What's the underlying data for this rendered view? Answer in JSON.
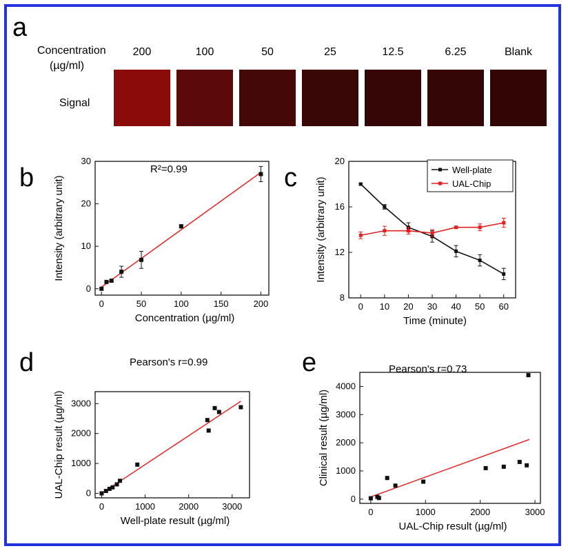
{
  "colors": {
    "frame": "#2233dd",
    "fit": "#e03030",
    "black": "#111111",
    "red": "#e02020"
  },
  "panel_a": {
    "letter": "a",
    "row_label_line1": "Concentration",
    "row_label_line2": "(µg/ml)",
    "signal_label": "Signal",
    "columns": [
      "200",
      "100",
      "50",
      "25",
      "12.5",
      "6.25",
      "Blank"
    ],
    "swatch_colors": [
      "#8b0a0a",
      "#5a0a0a",
      "#440808",
      "#3a0707",
      "#360606",
      "#350606",
      "#330606"
    ]
  },
  "chart_data": [
    {
      "id": "b",
      "type": "scatter",
      "letter": "b",
      "annotation": "R²=0.99",
      "xlabel": "Concentration (µg/ml)",
      "ylabel": "Intensity (arbitrary unit)",
      "xlim": [
        -8,
        210
      ],
      "ylim": [
        -1.5,
        30
      ],
      "xticks": [
        0,
        50,
        100,
        150,
        200
      ],
      "yticks": [
        0,
        10,
        20,
        30
      ],
      "x": [
        0,
        6.25,
        12.5,
        25,
        50,
        100,
        200
      ],
      "y": [
        0,
        1.6,
        1.9,
        4.0,
        6.8,
        14.7,
        27.0
      ],
      "err": [
        0.3,
        0.3,
        0.3,
        1.3,
        2.0,
        0.4,
        1.8
      ],
      "fit": {
        "x": [
          0,
          200
        ],
        "y": [
          0.4,
          27.4
        ]
      }
    },
    {
      "id": "c",
      "type": "line",
      "letter": "c",
      "xlabel": "Time (minute)",
      "ylabel": "Intensity (arbitrary unit)",
      "xlim": [
        -5,
        65
      ],
      "ylim": [
        8,
        20
      ],
      "xticks": [
        0,
        10,
        20,
        30,
        40,
        50,
        60
      ],
      "yticks": [
        8,
        12,
        16,
        20
      ],
      "x": [
        0,
        10,
        20,
        30,
        40,
        50,
        60
      ],
      "series": [
        {
          "name": "Well-plate",
          "color": "#111111",
          "values": [
            18.0,
            16.0,
            14.2,
            13.4,
            12.1,
            11.3,
            10.1
          ],
          "err": [
            0.1,
            0.2,
            0.4,
            0.5,
            0.5,
            0.5,
            0.5
          ]
        },
        {
          "name": "UAL-Chip",
          "color": "#e02020",
          "values": [
            13.5,
            13.9,
            13.9,
            13.7,
            14.2,
            14.2,
            14.6
          ],
          "err": [
            0.3,
            0.4,
            0.3,
            0.3,
            0.1,
            0.3,
            0.4
          ]
        }
      ],
      "legend_position": "top-right"
    },
    {
      "id": "d",
      "type": "scatter",
      "letter": "d",
      "annotation": "Pearson's r=0.99",
      "xlabel": "Well-plate result (µg/ml)",
      "ylabel": "UAL-Chip result (µg/ml)",
      "xlim": [
        -150,
        3400
      ],
      "ylim": [
        -150,
        3400
      ],
      "xticks": [
        0,
        1000,
        2000,
        3000
      ],
      "yticks": [
        0,
        1000,
        2000,
        3000
      ],
      "x": [
        0,
        100,
        180,
        250,
        350,
        420,
        820,
        2430,
        2460,
        2600,
        2700,
        3200
      ],
      "y": [
        0,
        80,
        150,
        200,
        300,
        420,
        960,
        2450,
        2100,
        2850,
        2720,
        2880
      ],
      "fit": {
        "x": [
          0,
          3200
        ],
        "y": [
          0,
          3080
        ]
      }
    },
    {
      "id": "e",
      "type": "scatter",
      "letter": "e",
      "annotation": "Pearson's r=0.73",
      "xlabel": "UAL-Chip result (µg/ml)",
      "ylabel": "Clinical result (µg/ml)",
      "xlim": [
        -200,
        3100
      ],
      "ylim": [
        -150,
        4500
      ],
      "xticks": [
        0,
        1000,
        2000,
        3000
      ],
      "yticks": [
        0,
        1000,
        2000,
        3000,
        4000
      ],
      "x": [
        0,
        120,
        150,
        300,
        450,
        960,
        2100,
        2430,
        2720,
        2850,
        2880
      ],
      "y": [
        30,
        80,
        40,
        750,
        480,
        620,
        1100,
        1150,
        1320,
        1200,
        4400
      ],
      "fit": {
        "x": [
          0,
          2900
        ],
        "y": [
          80,
          2120
        ]
      }
    }
  ]
}
